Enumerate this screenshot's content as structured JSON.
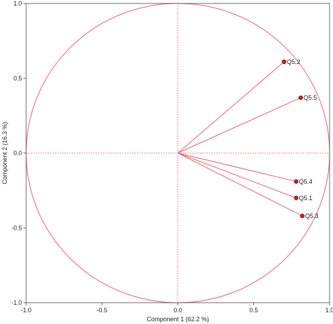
{
  "chart_data": {
    "type": "scatter",
    "subtype": "pca-correlation-circle",
    "title": "",
    "xlabel": "Component 1 (62.2 %)",
    "ylabel": "Component 2 (16.3 %)",
    "xlim": [
      -1.0,
      1.0
    ],
    "ylim": [
      -1.0,
      1.0
    ],
    "x_ticks": [
      -1.0,
      -0.5,
      0.0,
      0.5,
      1.0
    ],
    "x_tick_labels": [
      "-1.0",
      "-0.5",
      "0.0",
      "0.5",
      "1.0"
    ],
    "y_ticks": [
      -1.0,
      -0.5,
      0.0,
      0.5,
      1.0
    ],
    "y_tick_labels": [
      "-1.0",
      "-0.5",
      "0.0",
      "0.5",
      "1.0"
    ],
    "unit_circle": true,
    "reference_lines": "dotted at x=0 and y=0",
    "grid": false,
    "legend": "none",
    "colors": {
      "circle": "#e8606f",
      "vector": "#e8606f",
      "reference": "#e8606f",
      "point_fill": "#d81c24",
      "point_stroke": "#6e0a0e",
      "axis": "#444444"
    },
    "points": [
      {
        "label": "Q5.2",
        "x": 0.7,
        "y": 0.61
      },
      {
        "label": "Q5.5",
        "x": 0.81,
        "y": 0.37
      },
      {
        "label": "Q5.4",
        "x": 0.78,
        "y": -0.19
      },
      {
        "label": "Q5.1",
        "x": 0.78,
        "y": -0.3
      },
      {
        "label": "Q5.3",
        "x": 0.82,
        "y": -0.42
      }
    ]
  }
}
